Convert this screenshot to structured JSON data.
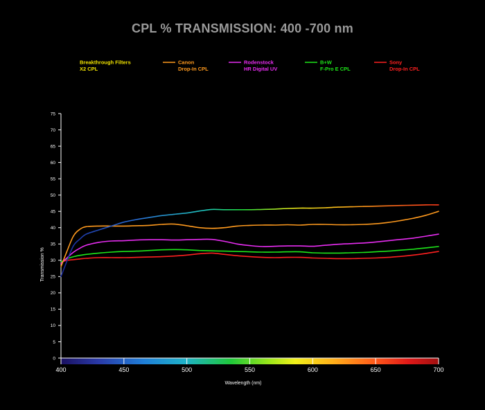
{
  "chart_data": {
    "type": "line",
    "title": "CPL % TRANSMISSION: 400 -700 nm",
    "xlabel": "Wavelength (nm)",
    "ylabel": "Transmission %",
    "xlim": [
      400,
      700
    ],
    "ylim": [
      0,
      75
    ],
    "x_ticks": [
      "400",
      "450",
      "500",
      "550",
      "600",
      "650",
      "700"
    ],
    "y_ticks": [
      "0",
      "5",
      "10",
      "15",
      "20",
      "25",
      "30",
      "35",
      "40",
      "45",
      "50",
      "55",
      "60",
      "65",
      "70",
      "75"
    ],
    "grid": false,
    "legend_position": "top",
    "series": [
      {
        "name_line1": "Breakthrough Filters",
        "name_line2": "X2 CPL",
        "color": "#f2e400",
        "spectral": true,
        "points": [
          [
            400,
            25
          ],
          [
            405,
            30
          ],
          [
            410,
            34.5
          ],
          [
            415,
            36.5
          ],
          [
            420,
            38
          ],
          [
            430,
            39.3
          ],
          [
            440,
            40.5
          ],
          [
            450,
            41.7
          ],
          [
            460,
            42.5
          ],
          [
            470,
            43.1
          ],
          [
            480,
            43.7
          ],
          [
            490,
            44.1
          ],
          [
            500,
            44.5
          ],
          [
            510,
            45.1
          ],
          [
            520,
            45.6
          ],
          [
            530,
            45.5
          ],
          [
            540,
            45.5
          ],
          [
            550,
            45.5
          ],
          [
            560,
            45.6
          ],
          [
            570,
            45.7
          ],
          [
            580,
            45.9
          ],
          [
            590,
            46
          ],
          [
            600,
            46
          ],
          [
            610,
            46.1
          ],
          [
            620,
            46.3
          ],
          [
            630,
            46.4
          ],
          [
            640,
            46.5
          ],
          [
            650,
            46.6
          ],
          [
            660,
            46.7
          ],
          [
            670,
            46.8
          ],
          [
            680,
            46.9
          ],
          [
            690,
            47
          ],
          [
            700,
            47
          ]
        ]
      },
      {
        "name_line1": "Canon",
        "name_line2": "Drop-In CPL",
        "color": "#ff9a1e",
        "spectral": false,
        "points": [
          [
            400,
            28
          ],
          [
            405,
            33
          ],
          [
            410,
            37.5
          ],
          [
            415,
            39.5
          ],
          [
            420,
            40.3
          ],
          [
            430,
            40.5
          ],
          [
            440,
            40.5
          ],
          [
            450,
            40.5
          ],
          [
            460,
            40.6
          ],
          [
            470,
            40.7
          ],
          [
            480,
            41
          ],
          [
            490,
            41.1
          ],
          [
            500,
            40.6
          ],
          [
            510,
            40
          ],
          [
            520,
            39.8
          ],
          [
            530,
            40
          ],
          [
            540,
            40.5
          ],
          [
            550,
            40.7
          ],
          [
            560,
            40.8
          ],
          [
            570,
            40.8
          ],
          [
            580,
            40.9
          ],
          [
            590,
            40.8
          ],
          [
            600,
            41
          ],
          [
            610,
            41
          ],
          [
            620,
            40.9
          ],
          [
            630,
            40.9
          ],
          [
            640,
            41
          ],
          [
            650,
            41.2
          ],
          [
            660,
            41.6
          ],
          [
            670,
            42.2
          ],
          [
            680,
            42.9
          ],
          [
            690,
            43.8
          ],
          [
            700,
            45
          ]
        ]
      },
      {
        "name_line1": "Rodenstock",
        "name_line2": "HR Digital UV",
        "color": "#e82df2",
        "spectral": false,
        "points": [
          [
            400,
            29
          ],
          [
            405,
            30.8
          ],
          [
            410,
            32.5
          ],
          [
            415,
            33.7
          ],
          [
            420,
            34.6
          ],
          [
            430,
            35.5
          ],
          [
            440,
            35.9
          ],
          [
            450,
            36
          ],
          [
            460,
            36.2
          ],
          [
            470,
            36.3
          ],
          [
            480,
            36.3
          ],
          [
            490,
            36.2
          ],
          [
            500,
            36.3
          ],
          [
            510,
            36.4
          ],
          [
            520,
            36.4
          ],
          [
            530,
            35.8
          ],
          [
            540,
            35
          ],
          [
            550,
            34.5
          ],
          [
            560,
            34.2
          ],
          [
            570,
            34.3
          ],
          [
            580,
            34.4
          ],
          [
            590,
            34.4
          ],
          [
            600,
            34.3
          ],
          [
            610,
            34.6
          ],
          [
            620,
            34.9
          ],
          [
            630,
            35.1
          ],
          [
            640,
            35.3
          ],
          [
            650,
            35.6
          ],
          [
            660,
            36
          ],
          [
            670,
            36.4
          ],
          [
            680,
            36.8
          ],
          [
            690,
            37.4
          ],
          [
            700,
            38
          ]
        ]
      },
      {
        "name_line1": "B+W",
        "name_line2": "F-Pro E CPL",
        "color": "#1ee81a",
        "spectral": false,
        "points": [
          [
            400,
            29.5
          ],
          [
            405,
            30.5
          ],
          [
            410,
            31.1
          ],
          [
            415,
            31.5
          ],
          [
            420,
            31.8
          ],
          [
            430,
            32.2
          ],
          [
            440,
            32.5
          ],
          [
            450,
            32.7
          ],
          [
            460,
            32.8
          ],
          [
            470,
            33
          ],
          [
            480,
            33.2
          ],
          [
            490,
            33.3
          ],
          [
            500,
            33.2
          ],
          [
            510,
            33
          ],
          [
            520,
            32.9
          ],
          [
            530,
            32.8
          ],
          [
            540,
            32.7
          ],
          [
            550,
            32.6
          ],
          [
            560,
            32.5
          ],
          [
            570,
            32.5
          ],
          [
            580,
            32.6
          ],
          [
            590,
            32.6
          ],
          [
            600,
            32.3
          ],
          [
            610,
            32.2
          ],
          [
            620,
            32.2
          ],
          [
            630,
            32.3
          ],
          [
            640,
            32.4
          ],
          [
            650,
            32.6
          ],
          [
            660,
            32.8
          ],
          [
            670,
            33.1
          ],
          [
            680,
            33.4
          ],
          [
            690,
            33.8
          ],
          [
            700,
            34.2
          ]
        ]
      },
      {
        "name_line1": "Sony",
        "name_line2": "Drop-In CPL",
        "color": "#ff2020",
        "spectral": false,
        "points": [
          [
            400,
            29.5
          ],
          [
            405,
            30
          ],
          [
            410,
            30.2
          ],
          [
            415,
            30.4
          ],
          [
            420,
            30.6
          ],
          [
            430,
            30.8
          ],
          [
            440,
            30.8
          ],
          [
            450,
            30.8
          ],
          [
            460,
            30.9
          ],
          [
            470,
            31
          ],
          [
            480,
            31.1
          ],
          [
            490,
            31.3
          ],
          [
            500,
            31.6
          ],
          [
            510,
            32
          ],
          [
            520,
            32.2
          ],
          [
            530,
            31.8
          ],
          [
            540,
            31.4
          ],
          [
            550,
            31.1
          ],
          [
            560,
            30.9
          ],
          [
            570,
            30.8
          ],
          [
            580,
            30.9
          ],
          [
            590,
            30.9
          ],
          [
            600,
            30.7
          ],
          [
            610,
            30.6
          ],
          [
            620,
            30.5
          ],
          [
            630,
            30.5
          ],
          [
            640,
            30.6
          ],
          [
            650,
            30.7
          ],
          [
            660,
            30.9
          ],
          [
            670,
            31.2
          ],
          [
            680,
            31.6
          ],
          [
            690,
            32.1
          ],
          [
            700,
            32.7
          ]
        ]
      }
    ]
  }
}
